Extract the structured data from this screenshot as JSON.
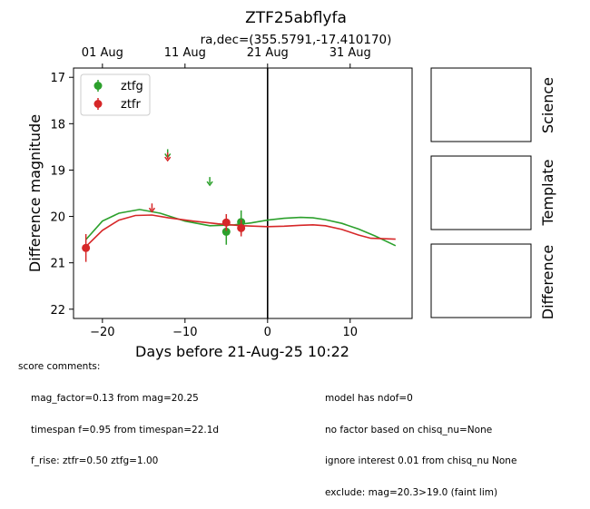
{
  "chart_data": {
    "type": "scatter",
    "title": "ZTF25abflyfa",
    "subtitle": "ra,dec=(355.5791,-17.410170)",
    "xlabel": "Days before 21-Aug-25 10:22",
    "ylabel": "Difference magnitude",
    "xlim": [
      -23.5,
      17.5
    ],
    "ylim": [
      22.2,
      16.8
    ],
    "inverted_y": true,
    "x_ticks": [
      -20,
      -10,
      0,
      10
    ],
    "x_tick_labels": [
      "−20",
      "−10",
      "0",
      "10"
    ],
    "y_ticks": [
      17,
      18,
      19,
      20,
      21,
      22
    ],
    "y_tick_labels": [
      "17",
      "18",
      "19",
      "20",
      "21",
      "22"
    ],
    "top_axis_ticks": [
      {
        "label": "01 Aug",
        "x": -20
      },
      {
        "label": "11 Aug",
        "x": -10
      },
      {
        "label": "21 Aug",
        "x": 0
      },
      {
        "label": "31 Aug",
        "x": 10
      }
    ],
    "legend_position": "upper-left",
    "vline_x": 0,
    "grid": false,
    "series": [
      {
        "name": "ztfg",
        "color": "#2ca02c",
        "detections": [
          {
            "x": -5.0,
            "y": 20.33,
            "err": 0.28
          },
          {
            "x": -3.2,
            "y": 20.12,
            "err": 0.25
          }
        ],
        "upper_limits": [
          {
            "x": -12.1,
            "y": 18.55
          },
          {
            "x": -7.0,
            "y": 19.15
          }
        ],
        "model": [
          {
            "x": -22.0,
            "y": 20.5
          },
          {
            "x": -20.0,
            "y": 20.1
          },
          {
            "x": -18.0,
            "y": 19.93
          },
          {
            "x": -15.5,
            "y": 19.85
          },
          {
            "x": -13.0,
            "y": 19.93
          },
          {
            "x": -10.0,
            "y": 20.1
          },
          {
            "x": -7.0,
            "y": 20.2
          },
          {
            "x": -4.0,
            "y": 20.18
          },
          {
            "x": -2.0,
            "y": 20.14
          },
          {
            "x": 0.0,
            "y": 20.08
          },
          {
            "x": 2.0,
            "y": 20.04
          },
          {
            "x": 4.0,
            "y": 20.02
          },
          {
            "x": 5.5,
            "y": 20.03
          },
          {
            "x": 7.0,
            "y": 20.07
          },
          {
            "x": 9.0,
            "y": 20.15
          },
          {
            "x": 11.0,
            "y": 20.27
          },
          {
            "x": 13.0,
            "y": 20.42
          },
          {
            "x": 15.5,
            "y": 20.63
          }
        ]
      },
      {
        "name": "ztfr",
        "color": "#d62728",
        "detections": [
          {
            "x": -22.0,
            "y": 20.68,
            "err": 0.3
          },
          {
            "x": -5.0,
            "y": 20.13,
            "err": 0.18
          },
          {
            "x": -3.2,
            "y": 20.25,
            "err": 0.18
          }
        ],
        "upper_limits": [
          {
            "x": -12.1,
            "y": 18.62
          },
          {
            "x": -14.0,
            "y": 19.72
          }
        ],
        "model": [
          {
            "x": -22.0,
            "y": 20.65
          },
          {
            "x": -20.0,
            "y": 20.3
          },
          {
            "x": -18.0,
            "y": 20.08
          },
          {
            "x": -16.0,
            "y": 19.98
          },
          {
            "x": -14.0,
            "y": 19.97
          },
          {
            "x": -12.0,
            "y": 20.03
          },
          {
            "x": -9.0,
            "y": 20.1
          },
          {
            "x": -6.0,
            "y": 20.16
          },
          {
            "x": -3.0,
            "y": 20.2
          },
          {
            "x": 0.0,
            "y": 20.22
          },
          {
            "x": 2.0,
            "y": 20.21
          },
          {
            "x": 4.0,
            "y": 20.19
          },
          {
            "x": 5.5,
            "y": 20.18
          },
          {
            "x": 7.0,
            "y": 20.2
          },
          {
            "x": 9.0,
            "y": 20.28
          },
          {
            "x": 11.0,
            "y": 20.4
          },
          {
            "x": 12.5,
            "y": 20.47
          },
          {
            "x": 15.5,
            "y": 20.49
          }
        ]
      }
    ],
    "panels": [
      "Science",
      "Template",
      "Difference"
    ]
  },
  "score_comments": {
    "title": "score comments:",
    "lines": [
      "mag_factor=0.13 from mag=20.25",
      "timespan f=0.95 from timespan=22.1d",
      "f_rise: ztfr=0.50 ztfg=1.00"
    ]
  },
  "model_comments": {
    "lines": [
      "model has ndof=0",
      "no factor based on chisq_nu=None",
      "ignore interest 0.01 from chisq_nu None",
      "exclude: mag=20.3>19.0 (faint lim)"
    ]
  }
}
